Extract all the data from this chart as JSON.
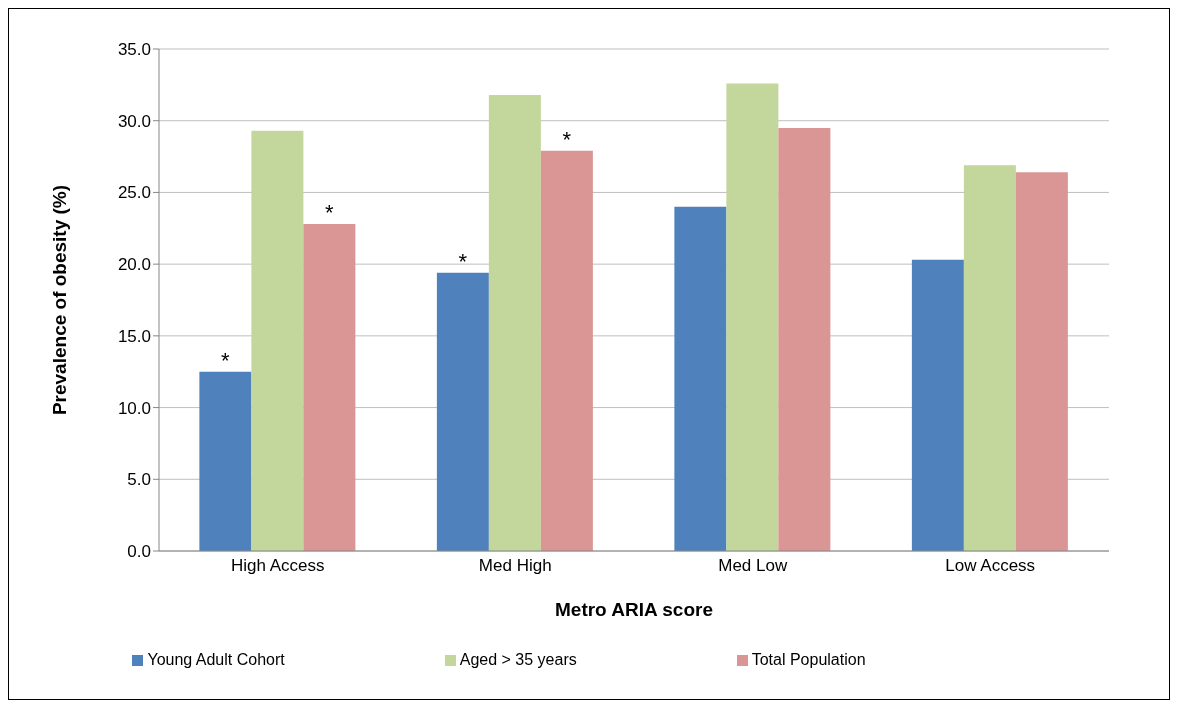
{
  "chart_data": {
    "type": "bar",
    "xlabel": "Metro ARIA score",
    "ylabel": "Prevalence of obesity (%)",
    "categories": [
      "High Access",
      "Med High",
      "Med Low",
      "Low Access"
    ],
    "series": [
      {
        "name": "Young Adult Cohort",
        "color": "#4f81bd",
        "values": [
          12.5,
          19.4,
          24.0,
          20.3
        ],
        "value_labels": [
          "*",
          "*",
          null,
          null
        ]
      },
      {
        "name": "Aged > 35 years",
        "color": "#c3d69b",
        "values": [
          29.3,
          31.8,
          32.6,
          26.9
        ]
      },
      {
        "name": "Total Population",
        "color": "#d99694",
        "values": [
          22.8,
          27.9,
          29.5,
          26.4
        ],
        "value_labels": [
          "*",
          "*",
          null,
          null
        ]
      }
    ],
    "ylim": [
      0,
      35
    ],
    "yticks": [
      {
        "value": 0,
        "label": "0.0"
      },
      {
        "value": 5,
        "label": "5.0"
      },
      {
        "value": 10,
        "label": "10.0"
      },
      {
        "value": 15,
        "label": "15.0"
      },
      {
        "value": 20,
        "label": "20.0"
      },
      {
        "value": 25,
        "label": "25.0"
      },
      {
        "value": 30,
        "label": "30.0"
      },
      {
        "value": 35,
        "label": "35.0"
      }
    ],
    "grid": "y",
    "legend": "bottom"
  }
}
